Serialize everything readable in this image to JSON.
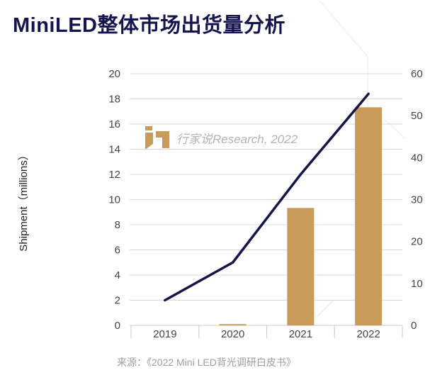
{
  "title": "MiniLED整体市场出货量分析",
  "watermark": {
    "text": "行家说Research, 2022",
    "logo": "hangjiashuo-logo"
  },
  "source": "来源：《2022 Mini LED背光调研白皮书》",
  "colors": {
    "bar": "#C89B5A",
    "line": "#15154A",
    "title": "#14144E",
    "grid": "#D9D9D9",
    "axis_line": "#C9C9C9",
    "tick_label": "#444444",
    "watermark_gold": "#C89B5A",
    "watermark_text": "#B3B3B3",
    "deco": "#F3F3F3"
  },
  "chart_data": {
    "type": "combo bar+line, dual y-axes",
    "title": "MiniLED整体市场出货量分析",
    "categories": [
      "2019",
      "2020",
      "2021",
      "2022"
    ],
    "series": [
      {
        "name": "bars",
        "type": "bar",
        "axis": "right",
        "values": [
          0,
          0.3,
          28,
          52
        ]
      },
      {
        "name": "line",
        "type": "line",
        "axis": "left",
        "values": [
          2,
          5,
          12,
          18.4
        ]
      }
    ],
    "ylabel_left": "Shipment（millions）",
    "left_axis": {
      "min": 0,
      "max": 20,
      "step": 2,
      "ticks": [
        0,
        2,
        4,
        6,
        8,
        10,
        12,
        14,
        16,
        18,
        20
      ]
    },
    "right_axis": {
      "min": 0,
      "max": 60,
      "step": 10,
      "ticks": [
        0,
        10,
        20,
        30,
        40,
        50,
        60
      ]
    },
    "grid": true,
    "legend": "none"
  }
}
